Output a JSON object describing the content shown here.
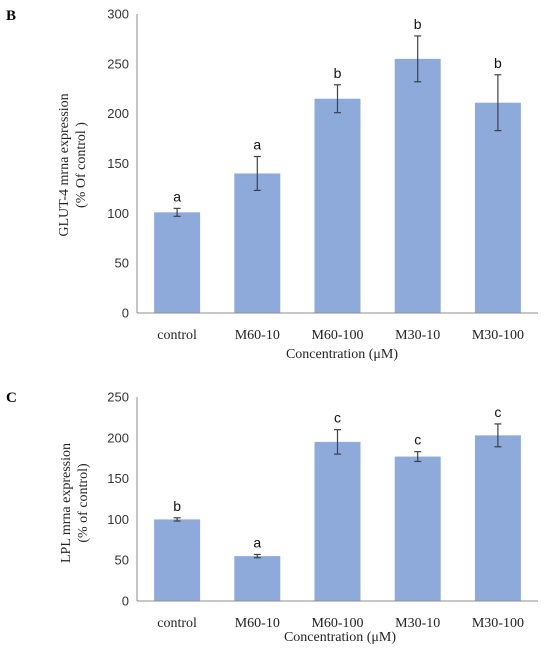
{
  "colors": {
    "bar": "#8eaadb",
    "errorbar": "#404040",
    "axis": "#8c8c8c"
  },
  "chart_data": [
    {
      "panel": "B",
      "type": "bar",
      "categories": [
        "control",
        "M60-10",
        "M60-100",
        "M30-10",
        "M30-100"
      ],
      "values": [
        101,
        140,
        215,
        255,
        211
      ],
      "errors": [
        4,
        17,
        14,
        23,
        28
      ],
      "labels": [
        "a",
        "a",
        "b",
        "b",
        "b"
      ],
      "xlabel": "Concentration (μM)",
      "ylabel_lines": [
        "GLUT-4 mrna expression",
        "(% Of control )"
      ],
      "ylim": [
        0,
        300
      ],
      "yticks": [
        0,
        50,
        100,
        150,
        200,
        250,
        300
      ],
      "grid": false
    },
    {
      "panel": "C",
      "type": "bar",
      "categories": [
        "control",
        "M60-10",
        "M60-100",
        "M30-10",
        "M30-100"
      ],
      "values": [
        100,
        55,
        195,
        177,
        203
      ],
      "errors": [
        2,
        2,
        15,
        6,
        14
      ],
      "labels": [
        "b",
        "a",
        "c",
        "c",
        "c"
      ],
      "xlabel": "Concentration (μM)",
      "ylabel_lines": [
        "LPL mrna expression",
        "(% of control)"
      ],
      "ylim": [
        0,
        250
      ],
      "yticks": [
        0,
        50,
        100,
        150,
        200,
        250
      ],
      "grid": false
    }
  ]
}
